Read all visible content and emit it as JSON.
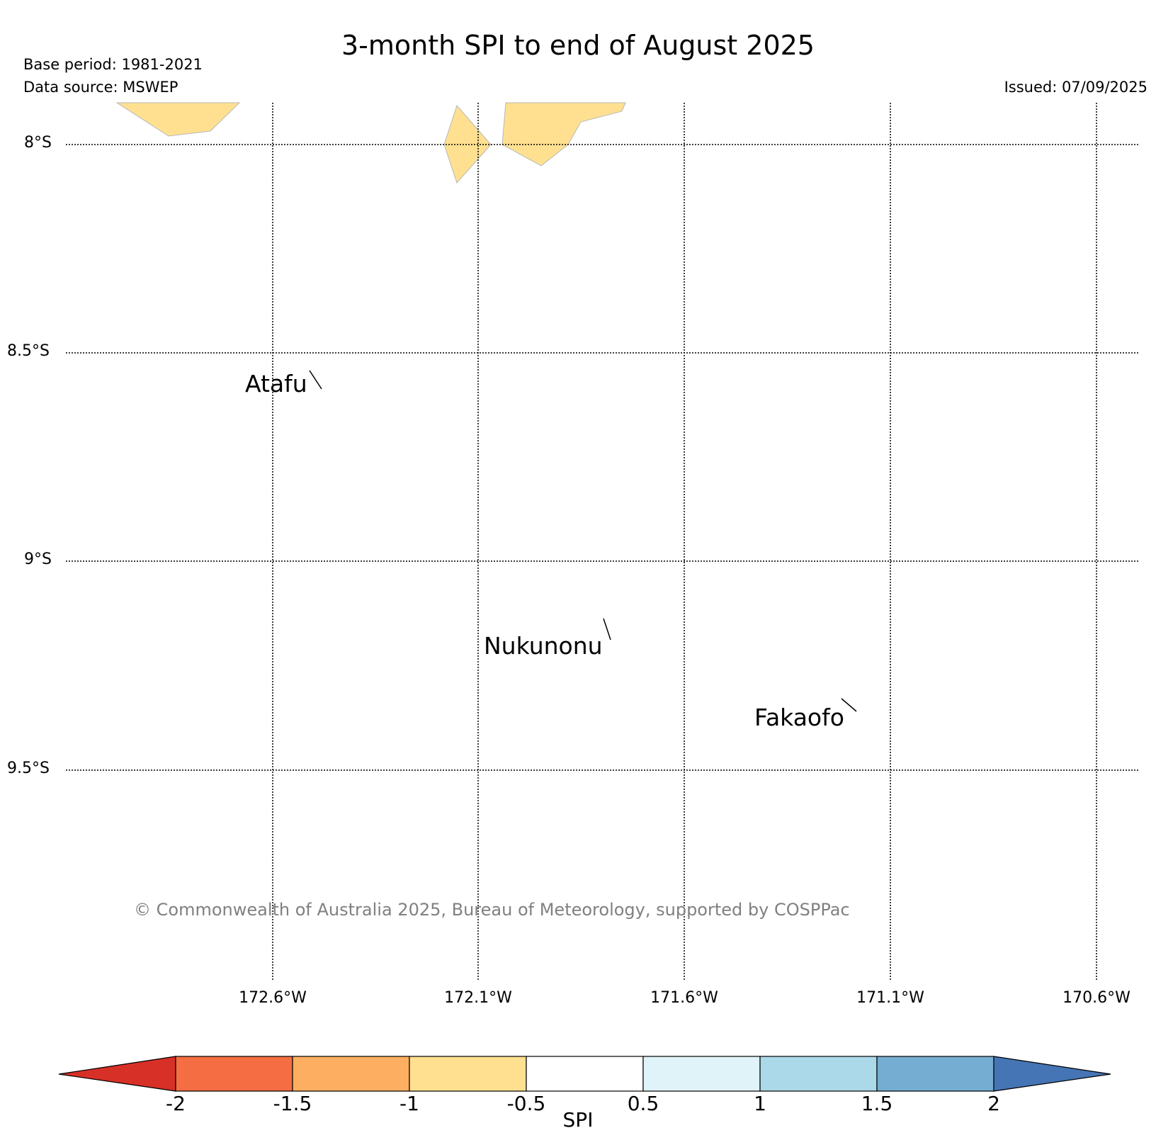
{
  "header": {
    "title": "3-month SPI to end of August 2025",
    "base_period": "Base period: 1981-2021",
    "data_source": "Data source: MSWEP",
    "issued": "Issued: 07/09/2025"
  },
  "map": {
    "lat_ticks": [
      "8°S",
      "8.5°S",
      "9°S",
      "9.5°S"
    ],
    "lon_ticks": [
      "172.6°W",
      "172.1°W",
      "171.6°W",
      "171.1°W",
      "170.6°W"
    ],
    "gridlines": "dotted",
    "places": {
      "atafu": "Atafu",
      "nukunonu": "Nukunonu",
      "fakaofo": "Fakaofo"
    },
    "shaded_category": "-1 to -0.5",
    "shaded_color": "#fee090",
    "copyright": "© Commonwealth of Australia 2025, Bureau of Meteorology, supported by COSPPac"
  },
  "colorbar": {
    "label": "SPI",
    "ticks": [
      "-2",
      "-1.5",
      "-1",
      "-0.5",
      "0.5",
      "1",
      "1.5",
      "2"
    ],
    "colors": [
      "#d73027",
      "#f46d43",
      "#fdae61",
      "#fee090",
      "#ffffff",
      "#e0f3f8",
      "#abd9e9",
      "#74add1",
      "#4575b4"
    ],
    "extend": "both"
  }
}
